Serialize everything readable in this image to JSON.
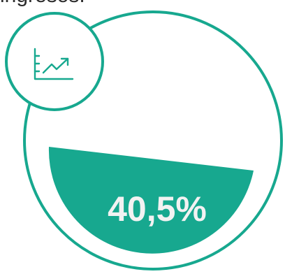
{
  "header": {
    "partial_label": "ingresos:"
  },
  "metric": {
    "value_text": "40,5%",
    "fill_level": 0.405
  },
  "icon": {
    "name": "chart-trend-up-icon"
  },
  "colors": {
    "accent": "#17a88f",
    "value_text": "#f2f2f2",
    "background": "#ffffff"
  }
}
